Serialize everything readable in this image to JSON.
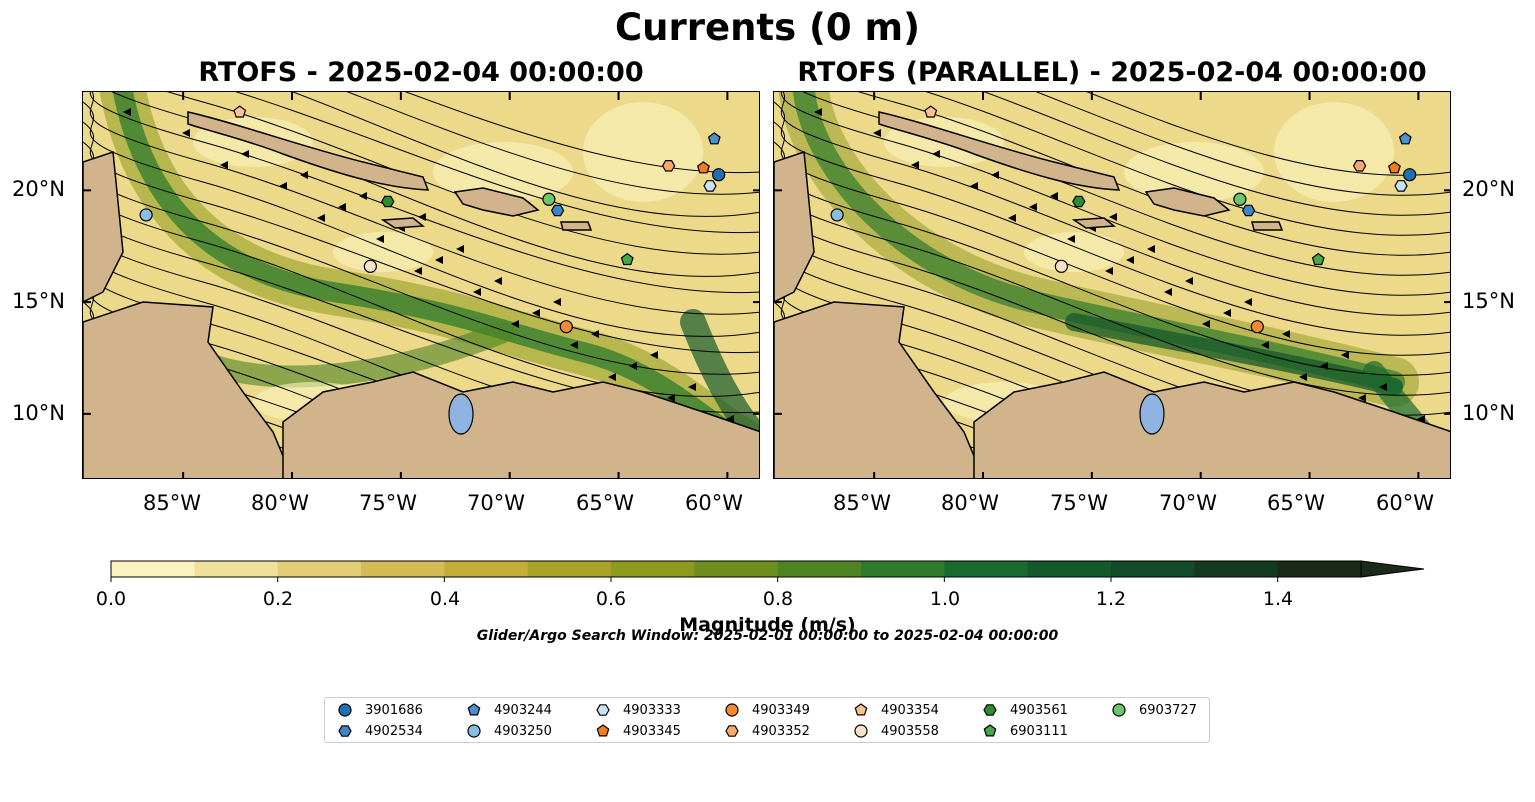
{
  "figure": {
    "title": "Currents (0 m)",
    "panels": [
      {
        "title": "RTOFS - 2025-02-04 00:00:00"
      },
      {
        "title": "RTOFS (PARALLEL) - 2025-02-04 00:00:00"
      }
    ],
    "longitude_labels": [
      "85°W",
      "80°W",
      "75°W",
      "70°W",
      "65°W",
      "60°W"
    ],
    "latitude_labels": [
      "20°N",
      "15°N",
      "10°N"
    ],
    "colorbar": {
      "label": "Magnitude (m/s)",
      "ticks": [
        "0.0",
        "0.2",
        "0.4",
        "0.6",
        "0.8",
        "1.0",
        "1.2",
        "1.4"
      ],
      "min": 0.0,
      "max": 1.5,
      "extend": "max",
      "colors": [
        "#fbf3c0",
        "#efe09a",
        "#e2cc76",
        "#d4bb55",
        "#c4ac3a",
        "#a8a226",
        "#8c9a1d",
        "#6e8f1e",
        "#4f8424",
        "#2f7b2c",
        "#1a6b2e",
        "#155a2b",
        "#134a28",
        "#153a22",
        "#1a2b1a"
      ]
    },
    "search_window": "Glider/Argo Search Window: 2025-02-01 00:00:00 to 2025-02-04 00:00:00",
    "legend": [
      {
        "label": "3901686",
        "marker": "circle",
        "color": "#1f6fb4"
      },
      {
        "label": "4902534",
        "marker": "hexagon",
        "color": "#3a86c8"
      },
      {
        "label": "4903244",
        "marker": "pentagon",
        "color": "#4a91d0"
      },
      {
        "label": "4903250",
        "marker": "circle",
        "color": "#88bde6"
      },
      {
        "label": "4903333",
        "marker": "hexagon",
        "color": "#c6e2f7"
      },
      {
        "label": "4903345",
        "marker": "pentagon",
        "color": "#f27d1a"
      },
      {
        "label": "4903349",
        "marker": "circle",
        "color": "#f58a30"
      },
      {
        "label": "4903352",
        "marker": "hexagon",
        "color": "#fba86a"
      },
      {
        "label": "4903354",
        "marker": "pentagon",
        "color": "#fcc28e"
      },
      {
        "label": "4903558",
        "marker": "circle",
        "color": "#fde0c8"
      },
      {
        "label": "4903561",
        "marker": "hexagon",
        "color": "#2e8b2e"
      },
      {
        "label": "6903111",
        "marker": "pentagon",
        "color": "#45a845"
      },
      {
        "label": "6903727",
        "marker": "circle",
        "color": "#6cc66c"
      }
    ],
    "floats": [
      {
        "id": "3901686",
        "lon": -60.4,
        "lat": 20.7
      },
      {
        "id": "4902534",
        "lon": -67.8,
        "lat": 19.1
      },
      {
        "id": "4903244",
        "lon": -60.6,
        "lat": 22.3
      },
      {
        "id": "4903250",
        "lon": -86.7,
        "lat": 18.9
      },
      {
        "id": "4903333",
        "lon": -60.8,
        "lat": 20.2
      },
      {
        "id": "4903345",
        "lon": -61.1,
        "lat": 21.0
      },
      {
        "id": "4903349",
        "lon": -67.4,
        "lat": 13.9
      },
      {
        "id": "4903352",
        "lon": -62.7,
        "lat": 21.1
      },
      {
        "id": "4903354",
        "lon": -82.4,
        "lat": 23.5
      },
      {
        "id": "4903558",
        "lon": -76.4,
        "lat": 16.6
      },
      {
        "id": "4903561",
        "lon": -75.6,
        "lat": 19.5
      },
      {
        "id": "6903111",
        "lon": -64.6,
        "lat": 16.9
      },
      {
        "id": "6903727",
        "lon": -68.2,
        "lat": 19.6
      }
    ]
  }
}
